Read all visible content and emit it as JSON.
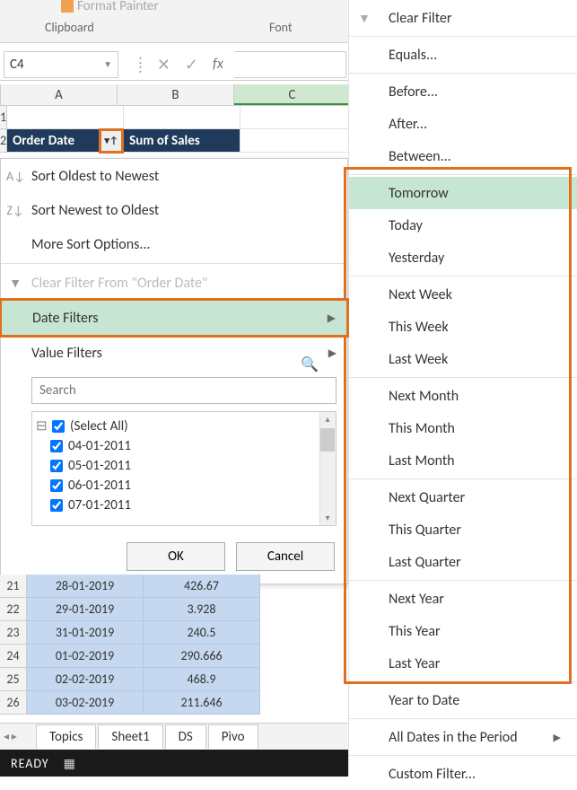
{
  "ribbon": {
    "format_painter": "Format Painter",
    "clipboard_label": "Clipboard",
    "font_label": "Font"
  },
  "namebox": {
    "value": "C4"
  },
  "columns": [
    "A",
    "B",
    "C"
  ],
  "header_row": {
    "order_date": "Order Date",
    "sum_sales": "Sum of Sales"
  },
  "context_menu": {
    "sort_oldest": "Sort Oldest to Newest",
    "sort_newest": "Sort Newest to Oldest",
    "more_sort": "More Sort Options...",
    "clear_filter": "Clear Filter From \"Order Date\"",
    "date_filters": "Date Filters",
    "value_filters": "Value Filters",
    "search_placeholder": "Search",
    "tree_items": [
      "(Select All)",
      "04-01-2011",
      "05-01-2011",
      "06-01-2011",
      "07-01-2011"
    ],
    "ok": "OK",
    "cancel": "Cancel"
  },
  "submenu": {
    "clear_filter": "Clear Filter",
    "equals": "Equals...",
    "before": "Before...",
    "after": "After...",
    "between": "Between...",
    "tomorrow": "Tomorrow",
    "today": "Today",
    "yesterday": "Yesterday",
    "next_week": "Next Week",
    "this_week": "This Week",
    "last_week": "Last Week",
    "next_month": "Next Month",
    "this_month": "This Month",
    "last_month": "Last Month",
    "next_quarter": "Next Quarter",
    "this_quarter": "This Quarter",
    "last_quarter": "Last Quarter",
    "next_year": "Next Year",
    "this_year": "This Year",
    "last_year": "Last Year",
    "year_to_date": "Year to Date",
    "all_dates": "All Dates in the Period",
    "custom_filter": "Custom Filter..."
  },
  "data_rows": [
    {
      "n": "21",
      "date": "28-01-2019",
      "val": "426.67"
    },
    {
      "n": "22",
      "date": "29-01-2019",
      "val": "3.928"
    },
    {
      "n": "23",
      "date": "31-01-2019",
      "val": "240.5"
    },
    {
      "n": "24",
      "date": "01-02-2019",
      "val": "290.666"
    },
    {
      "n": "25",
      "date": "02-02-2019",
      "val": "468.9"
    },
    {
      "n": "26",
      "date": "03-02-2019",
      "val": "211.646"
    }
  ],
  "sheet_tabs": [
    "Topics",
    "Sheet1",
    "DS",
    "Pivo"
  ],
  "status": {
    "ready": "READY"
  }
}
